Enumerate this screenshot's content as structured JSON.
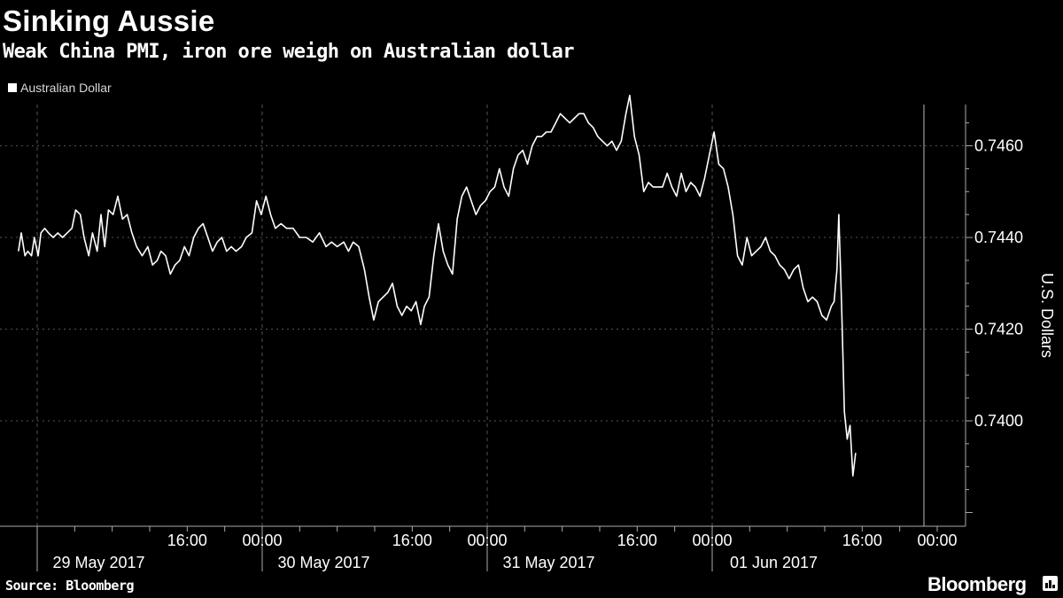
{
  "header": {
    "title": "Sinking Aussie",
    "subtitle": "Weak China PMI, iron ore weigh on Australian dollar"
  },
  "footer": {
    "source": "Source: Bloomberg",
    "brand": "Bloomberg"
  },
  "colors": {
    "background": "#000000",
    "line": "#ffffff",
    "grid": "#555555"
  },
  "chart_data": {
    "type": "line",
    "title": "Sinking Aussie",
    "subtitle": "Weak China PMI, iron ore weigh on Australian dollar",
    "ylabel": "U.S. Dollars",
    "ylim": [
      0.7377,
      0.7469
    ],
    "yticks": [
      0.74,
      0.742,
      0.744,
      0.746
    ],
    "ytick_labels": [
      "0.7400",
      "0.7420",
      "0.7440",
      "0.7460"
    ],
    "xlim_hours": [
      -6,
      90
    ],
    "day_labels": [
      {
        "label": "29 May 2017",
        "hour": 18
      },
      {
        "label": "30 May 2017",
        "hour": 42
      },
      {
        "label": "31 May 2017",
        "hour": 66
      },
      {
        "label": "01 Jun 2017",
        "hour": 90
      }
    ],
    "time_ticks": [
      {
        "label": "16:00",
        "hour": 16
      },
      {
        "label": "00:00",
        "hour": 24
      },
      {
        "label": "16:00",
        "hour": 40
      },
      {
        "label": "00:00",
        "hour": 48
      },
      {
        "label": "16:00",
        "hour": 64
      },
      {
        "label": "00:00",
        "hour": 72
      },
      {
        "label": "16:00",
        "hour": 88
      },
      {
        "label": "00:00",
        "hour": 96
      }
    ],
    "legend": {
      "position": "top-left",
      "entries": [
        "Australian Dollar"
      ]
    },
    "grid": true,
    "series": [
      {
        "name": "Australian Dollar",
        "x_unit": "hours from 29 May 2017 00:00 (data resolution ~ every 0.5 h; x estimated)",
        "values": [
          [
            -2.0,
            0.7437
          ],
          [
            -1.7,
            0.7441
          ],
          [
            -1.3,
            0.7436
          ],
          [
            -1.0,
            0.7437
          ],
          [
            -0.6,
            0.7436
          ],
          [
            -0.3,
            0.744
          ],
          [
            0.1,
            0.7436
          ],
          [
            0.4,
            0.7441
          ],
          [
            0.8,
            0.7442
          ],
          [
            1.2,
            0.7441
          ],
          [
            1.7,
            0.744
          ],
          [
            2.2,
            0.7441
          ],
          [
            2.7,
            0.744
          ],
          [
            3.2,
            0.7441
          ],
          [
            3.7,
            0.7442
          ],
          [
            4.1,
            0.7446
          ],
          [
            4.6,
            0.7445
          ],
          [
            5.0,
            0.744
          ],
          [
            5.5,
            0.7436
          ],
          [
            5.9,
            0.7441
          ],
          [
            6.4,
            0.7437
          ],
          [
            6.8,
            0.7445
          ],
          [
            7.2,
            0.7438
          ],
          [
            7.6,
            0.7446
          ],
          [
            8.1,
            0.7445
          ],
          [
            8.6,
            0.7449
          ],
          [
            9.1,
            0.7444
          ],
          [
            9.6,
            0.7445
          ],
          [
            10.1,
            0.7441
          ],
          [
            10.6,
            0.7438
          ],
          [
            11.2,
            0.7436
          ],
          [
            11.8,
            0.7438
          ],
          [
            12.3,
            0.7434
          ],
          [
            12.8,
            0.7435
          ],
          [
            13.2,
            0.7437
          ],
          [
            13.7,
            0.7436
          ],
          [
            14.2,
            0.7432
          ],
          [
            14.7,
            0.7434
          ],
          [
            15.2,
            0.7435
          ],
          [
            15.7,
            0.7438
          ],
          [
            16.2,
            0.7436
          ],
          [
            16.7,
            0.744
          ],
          [
            17.2,
            0.7442
          ],
          [
            17.7,
            0.7443
          ],
          [
            18.2,
            0.744
          ],
          [
            18.7,
            0.7437
          ],
          [
            19.2,
            0.7439
          ],
          [
            19.7,
            0.744
          ],
          [
            20.2,
            0.7437
          ],
          [
            20.7,
            0.7438
          ],
          [
            21.2,
            0.7437
          ],
          [
            21.8,
            0.7438
          ],
          [
            22.3,
            0.744
          ],
          [
            22.9,
            0.7441
          ],
          [
            23.4,
            0.7448
          ],
          [
            23.9,
            0.7445
          ],
          [
            24.4,
            0.7449
          ],
          [
            24.9,
            0.7445
          ],
          [
            25.4,
            0.7442
          ],
          [
            26.0,
            0.7443
          ],
          [
            26.6,
            0.7442
          ],
          [
            27.3,
            0.7442
          ],
          [
            28.0,
            0.744
          ],
          [
            28.7,
            0.744
          ],
          [
            29.4,
            0.7439
          ],
          [
            30.1,
            0.7441
          ],
          [
            30.8,
            0.7438
          ],
          [
            31.4,
            0.7439
          ],
          [
            32.0,
            0.7438
          ],
          [
            32.7,
            0.7439
          ],
          [
            33.2,
            0.7437
          ],
          [
            33.7,
            0.7439
          ],
          [
            34.3,
            0.7438
          ],
          [
            34.9,
            0.7433
          ],
          [
            35.4,
            0.7427
          ],
          [
            35.9,
            0.7422
          ],
          [
            36.4,
            0.7426
          ],
          [
            36.9,
            0.7427
          ],
          [
            37.4,
            0.7428
          ],
          [
            37.9,
            0.743
          ],
          [
            38.4,
            0.7425
          ],
          [
            38.9,
            0.7423
          ],
          [
            39.4,
            0.7425
          ],
          [
            39.9,
            0.7424
          ],
          [
            40.4,
            0.7426
          ],
          [
            40.9,
            0.7421
          ],
          [
            41.3,
            0.7425
          ],
          [
            41.8,
            0.7427
          ],
          [
            42.3,
            0.7436
          ],
          [
            42.8,
            0.7443
          ],
          [
            43.3,
            0.7437
          ],
          [
            43.8,
            0.7434
          ],
          [
            44.3,
            0.7432
          ],
          [
            44.8,
            0.7444
          ],
          [
            45.3,
            0.7449
          ],
          [
            45.8,
            0.7451
          ],
          [
            46.3,
            0.7448
          ],
          [
            46.8,
            0.7445
          ],
          [
            47.3,
            0.7447
          ],
          [
            47.8,
            0.7448
          ],
          [
            48.3,
            0.745
          ],
          [
            48.8,
            0.7451
          ],
          [
            49.3,
            0.7455
          ],
          [
            49.8,
            0.7451
          ],
          [
            50.3,
            0.7449
          ],
          [
            50.8,
            0.7455
          ],
          [
            51.3,
            0.7458
          ],
          [
            51.8,
            0.7459
          ],
          [
            52.3,
            0.7456
          ],
          [
            52.8,
            0.746
          ],
          [
            53.3,
            0.7462
          ],
          [
            53.8,
            0.7462
          ],
          [
            54.3,
            0.7463
          ],
          [
            54.8,
            0.7463
          ],
          [
            55.3,
            0.7465
          ],
          [
            55.8,
            0.7467
          ],
          [
            56.3,
            0.7466
          ],
          [
            56.8,
            0.7465
          ],
          [
            57.3,
            0.7466
          ],
          [
            57.8,
            0.7467
          ],
          [
            58.3,
            0.7467
          ],
          [
            58.8,
            0.7465
          ],
          [
            59.3,
            0.7464
          ],
          [
            59.8,
            0.7462
          ],
          [
            60.3,
            0.7461
          ],
          [
            60.8,
            0.746
          ],
          [
            61.3,
            0.7461
          ],
          [
            61.8,
            0.7459
          ],
          [
            62.3,
            0.7461
          ],
          [
            62.8,
            0.7467
          ],
          [
            63.2,
            0.7471
          ],
          [
            63.7,
            0.7462
          ],
          [
            64.2,
            0.7458
          ],
          [
            64.7,
            0.745
          ],
          [
            65.2,
            0.7452
          ],
          [
            65.7,
            0.7451
          ],
          [
            66.2,
            0.7451
          ],
          [
            66.7,
            0.7451
          ],
          [
            67.2,
            0.7454
          ],
          [
            67.7,
            0.7451
          ],
          [
            68.2,
            0.7449
          ],
          [
            68.7,
            0.7454
          ],
          [
            69.2,
            0.745
          ],
          [
            69.7,
            0.7452
          ],
          [
            70.2,
            0.7451
          ],
          [
            70.7,
            0.7449
          ],
          [
            71.2,
            0.7453
          ],
          [
            71.7,
            0.7458
          ],
          [
            72.2,
            0.7463
          ],
          [
            72.7,
            0.7456
          ],
          [
            73.2,
            0.7455
          ],
          [
            73.7,
            0.7451
          ],
          [
            74.2,
            0.7445
          ],
          [
            74.7,
            0.7436
          ],
          [
            75.2,
            0.7434
          ],
          [
            75.7,
            0.744
          ],
          [
            76.2,
            0.7436
          ],
          [
            76.7,
            0.7437
          ],
          [
            77.2,
            0.7438
          ],
          [
            77.7,
            0.744
          ],
          [
            78.2,
            0.7437
          ],
          [
            78.7,
            0.7436
          ],
          [
            79.2,
            0.7434
          ],
          [
            79.7,
            0.7433
          ],
          [
            80.2,
            0.7431
          ],
          [
            80.7,
            0.7433
          ],
          [
            81.2,
            0.7434
          ],
          [
            81.7,
            0.7429
          ],
          [
            82.2,
            0.7426
          ],
          [
            82.7,
            0.7427
          ],
          [
            83.2,
            0.7426
          ],
          [
            83.7,
            0.7423
          ],
          [
            84.2,
            0.7422
          ],
          [
            84.7,
            0.7425
          ],
          [
            85.0,
            0.7426
          ],
          [
            85.3,
            0.7433
          ],
          [
            85.5,
            0.7445
          ],
          [
            85.8,
            0.7425
          ],
          [
            86.1,
            0.7402
          ],
          [
            86.4,
            0.7396
          ],
          [
            86.7,
            0.7399
          ],
          [
            87.0,
            0.7388
          ],
          [
            87.3,
            0.7393
          ]
        ]
      }
    ]
  }
}
